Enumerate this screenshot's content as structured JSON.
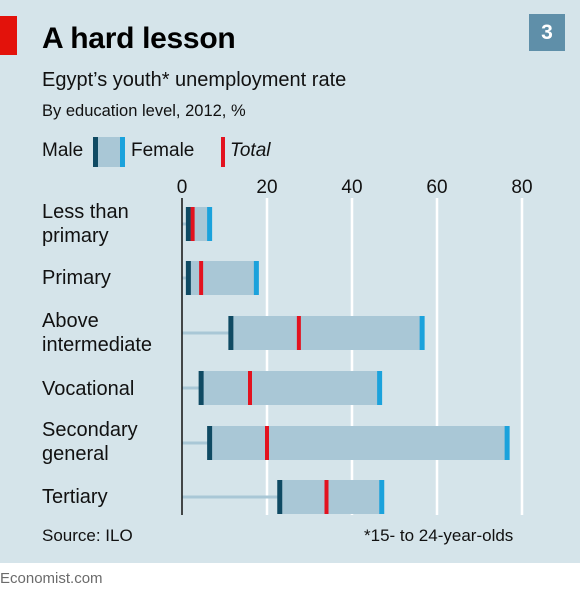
{
  "header": {
    "title": "A hard lesson",
    "badge": "3",
    "subtitle": "Egypt’s youth* unemployment rate",
    "subtitle2": "By education level, 2012, %"
  },
  "legend": {
    "male": "Male",
    "female": "Female",
    "total": "Total"
  },
  "colors": {
    "background": "#d5e4ea",
    "accent_red": "#e3120b",
    "male": "#0f4a63",
    "female": "#1ba2dc",
    "total": "#e3121f",
    "range_band": "#a9c7d6",
    "track": "#a9c7d6",
    "badge": "#5f8fa9"
  },
  "chart_data": {
    "type": "dot-range",
    "title": "A hard lesson",
    "subtitle": "Egypt’s youth* unemployment rate",
    "xlim": [
      0,
      80
    ],
    "xticks": [
      0,
      20,
      40,
      60,
      80
    ],
    "grid": true,
    "legend_position": "top",
    "categories": [
      "Less than\nprimary",
      "Primary",
      "Above\nintermediate",
      "Vocational",
      "Secondary\ngeneral",
      "Tertiary"
    ],
    "series": [
      {
        "name": "Male",
        "values": [
          1.5,
          1.5,
          11.5,
          4.5,
          6.5,
          23
        ]
      },
      {
        "name": "Female",
        "values": [
          6.5,
          17.5,
          56.5,
          46.5,
          76.5,
          47
        ]
      },
      {
        "name": "Total",
        "values": [
          2.5,
          4.5,
          27.5,
          16,
          20,
          34
        ]
      }
    ]
  },
  "footer": {
    "source": "Source: ILO",
    "note": "*15- to 24-year-olds",
    "brand": "Economist.com"
  }
}
